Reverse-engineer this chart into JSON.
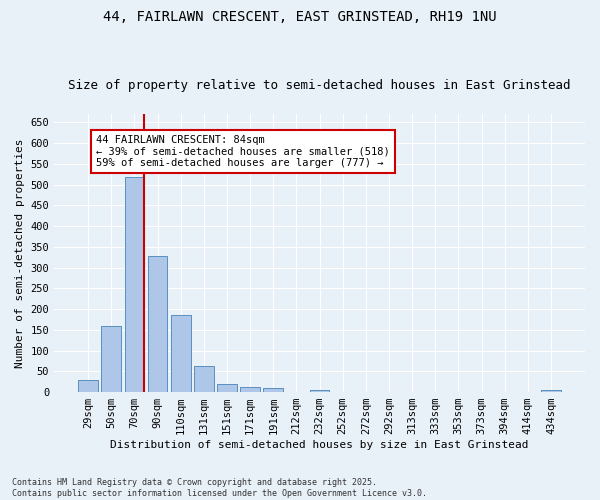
{
  "title_line1": "44, FAIRLAWN CRESCENT, EAST GRINSTEAD, RH19 1NU",
  "title_line2": "Size of property relative to semi-detached houses in East Grinstead",
  "xlabel": "Distribution of semi-detached houses by size in East Grinstead",
  "ylabel": "Number of semi-detached properties",
  "footnote": "Contains HM Land Registry data © Crown copyright and database right 2025.\nContains public sector information licensed under the Open Government Licence v3.0.",
  "categories": [
    "29sqm",
    "50sqm",
    "70sqm",
    "90sqm",
    "110sqm",
    "131sqm",
    "151sqm",
    "171sqm",
    "191sqm",
    "212sqm",
    "232sqm",
    "252sqm",
    "272sqm",
    "292sqm",
    "313sqm",
    "333sqm",
    "353sqm",
    "373sqm",
    "394sqm",
    "414sqm",
    "434sqm"
  ],
  "values": [
    28,
    160,
    518,
    328,
    185,
    63,
    20,
    13,
    9,
    0,
    5,
    0,
    0,
    0,
    0,
    0,
    0,
    0,
    0,
    0,
    5
  ],
  "bar_color": "#aec6e8",
  "bar_edge_color": "#5a8fc0",
  "vline_bar_index": 2,
  "vline_color": "#cc0000",
  "annotation_text": "44 FAIRLAWN CRESCENT: 84sqm\n← 39% of semi-detached houses are smaller (518)\n59% of semi-detached houses are larger (777) →",
  "annotation_box_facecolor": "#ffffff",
  "annotation_box_edgecolor": "#cc0000",
  "ylim": [
    0,
    670
  ],
  "yticks": [
    0,
    50,
    100,
    150,
    200,
    250,
    300,
    350,
    400,
    450,
    500,
    550,
    600,
    650
  ],
  "background_color": "#e8f0f8",
  "title1_fontsize": 10,
  "title2_fontsize": 9,
  "xlabel_fontsize": 8,
  "ylabel_fontsize": 8,
  "tick_fontsize": 7.5,
  "annot_fontsize": 7.5
}
